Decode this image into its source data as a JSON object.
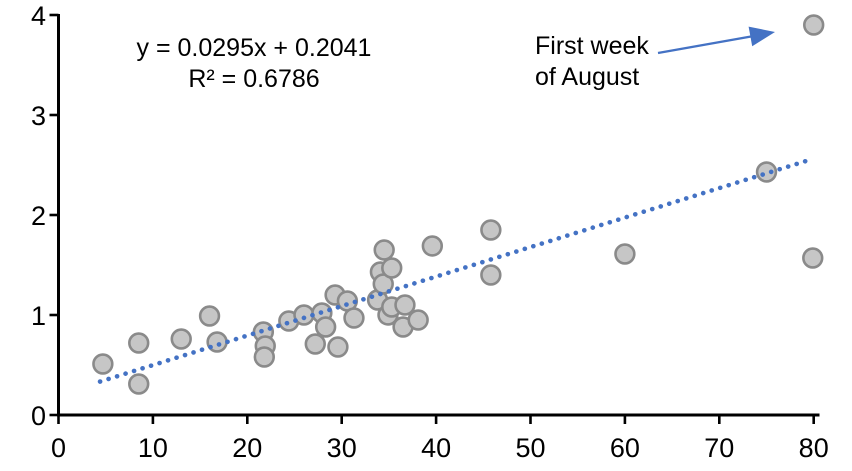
{
  "chart": {
    "equation_line1": "y = 0.0295x + 0.2041",
    "equation_line2": "R² = 0.6786",
    "annotation_line1": "First week",
    "annotation_line2": "of August",
    "colors": {
      "accent_blue": "#4472C4",
      "marker_fill": "#C6C6C6",
      "marker_stroke": "#8A8A8A",
      "axis_black": "#000000"
    }
  },
  "chart_data": {
    "type": "scatter",
    "title": "",
    "xlabel": "",
    "ylabel": "",
    "xlim": [
      0,
      80
    ],
    "ylim": [
      0,
      4
    ],
    "x_ticks": [
      0,
      10,
      20,
      30,
      40,
      50,
      60,
      70,
      80
    ],
    "y_ticks": [
      0,
      1,
      2,
      3,
      4
    ],
    "grid": false,
    "legend": "none",
    "points": [
      [
        4.7,
        0.51
      ],
      [
        8.5,
        0.72
      ],
      [
        8.5,
        0.31
      ],
      [
        13.0,
        0.76
      ],
      [
        16.0,
        0.99
      ],
      [
        16.8,
        0.73
      ],
      [
        21.7,
        0.83
      ],
      [
        21.9,
        0.69
      ],
      [
        21.8,
        0.58
      ],
      [
        24.4,
        0.94
      ],
      [
        26.0,
        1.0
      ],
      [
        27.2,
        0.71
      ],
      [
        27.9,
        1.02
      ],
      [
        28.3,
        0.88
      ],
      [
        29.3,
        1.2
      ],
      [
        29.6,
        0.68
      ],
      [
        30.6,
        1.14
      ],
      [
        31.3,
        0.97
      ],
      [
        33.8,
        1.15
      ],
      [
        34.1,
        1.43
      ],
      [
        34.4,
        1.31
      ],
      [
        34.5,
        1.65
      ],
      [
        34.9,
        1.0
      ],
      [
        35.3,
        1.47
      ],
      [
        35.3,
        1.08
      ],
      [
        36.5,
        0.88
      ],
      [
        36.7,
        1.1
      ],
      [
        38.1,
        0.95
      ],
      [
        39.6,
        1.69
      ],
      [
        45.8,
        1.85
      ],
      [
        45.8,
        1.4
      ],
      [
        60.0,
        1.61
      ],
      [
        75.0,
        2.43
      ],
      [
        79.9,
        1.57
      ],
      [
        80.0,
        3.9
      ]
    ],
    "trendline": {
      "type": "linear",
      "slope": 0.0295,
      "intercept": 0.2041,
      "r2": 0.6786,
      "style": "dotted",
      "x_start": 4.4,
      "x_end": 79.5
    },
    "annotation": {
      "text": "First week of August",
      "target_point": [
        80,
        3.9
      ]
    }
  }
}
